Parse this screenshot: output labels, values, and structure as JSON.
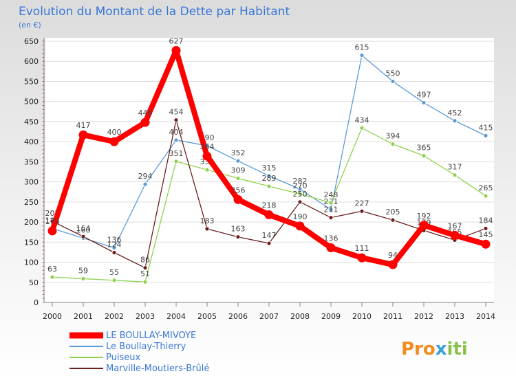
{
  "chart_data": {
    "type": "line",
    "title": "Evolution du Montant de la Dette par Habitant",
    "subtitle": "(en €)",
    "x": [
      "2000",
      "2001",
      "2002",
      "2003",
      "2004",
      "2005",
      "2006",
      "2007",
      "2008",
      "2009",
      "2010",
      "2011",
      "2012",
      "2013",
      "2014"
    ],
    "ylim": [
      0,
      650
    ],
    "yticks": [
      0,
      50,
      100,
      150,
      200,
      250,
      300,
      350,
      400,
      450,
      500,
      550,
      600,
      650
    ],
    "grid": true,
    "legend_position": "bottom-left",
    "series": [
      {
        "name": "LE BOULLAY-MIVOYE",
        "color": "#ff0000",
        "values": [
          178,
          417,
          400,
          448,
          627,
          364,
          256,
          218,
          190,
          136,
          111,
          94,
          192,
          167,
          145
        ]
      },
      {
        "name": "Le Boullay-Thierry",
        "color": "#5b9bd5",
        "values": [
          184,
          160,
          136,
          294,
          404,
          390,
          352,
          315,
          282,
          231,
          615,
          550,
          497,
          452,
          415
        ]
      },
      {
        "name": "Puiseux",
        "color": "#8fd14f",
        "values": [
          63,
          59,
          55,
          51,
          351,
          330,
          309,
          289,
          270,
          248,
          434,
          394,
          365,
          317,
          265
        ]
      },
      {
        "name": "Marville-Moutiers-Brûlé",
        "color": "#6b1f1f",
        "values": [
          202,
          164,
          124,
          86,
          454,
          183,
          163,
          147,
          250,
          211,
          227,
          205,
          179,
          155,
          184
        ]
      }
    ]
  },
  "brand": {
    "part1": "Pro",
    "part2": "x",
    "part3": "iti"
  }
}
